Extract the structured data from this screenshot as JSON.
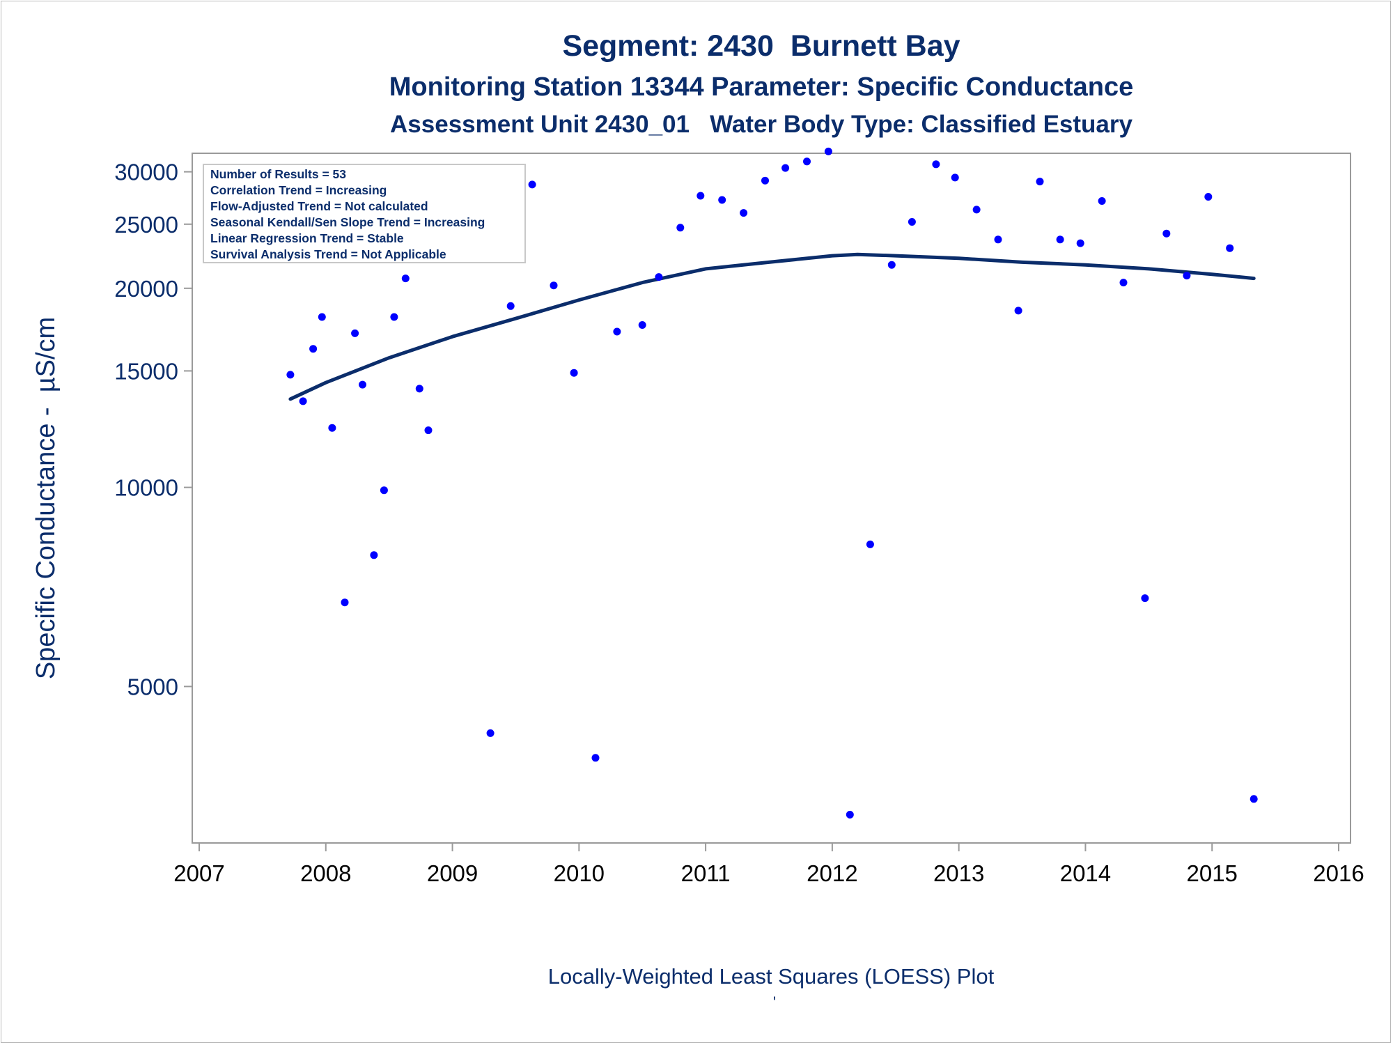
{
  "chart_data": {
    "type": "scatter",
    "title": "Segment: 2430  Burnett Bay",
    "subtitle_1": "Monitoring Station 13344 Parameter: Specific Conductance",
    "subtitle_2": "Assessment Unit 2430_01   Water Body Type: Classified Estuary",
    "ylabel": "Specific Conductance -  µS/cm",
    "footnote": "Locally-Weighted Least Squares (LOESS) Plot",
    "footnote_mark": "'",
    "y_scale": "log",
    "xlim": [
      2007,
      2016
    ],
    "ylim": [
      2900,
      32000
    ],
    "x_ticks": [
      2007,
      2008,
      2009,
      2010,
      2011,
      2012,
      2013,
      2014,
      2015,
      2016
    ],
    "y_ticks": [
      5000,
      10000,
      15000,
      20000,
      25000,
      30000
    ],
    "grid": false,
    "colors": {
      "text": "#0b2d6b",
      "points": "#0000ff",
      "loess": "#0b2d6b",
      "axis": "#9a9a9a",
      "x_tick_label": "#000000"
    },
    "stats_box": {
      "placement": "top-left",
      "lines": [
        "Number of Results = 53",
        "Correlation Trend = Increasing",
        "Flow-Adjusted Trend = Not calculated",
        "Seasonal Kendall/Sen Slope Trend = Increasing",
        "Linear Regression Trend = Stable",
        "Survival Analysis Trend = Not Applicable"
      ]
    },
    "series": [
      {
        "kind": "points",
        "points": [
          {
            "x": 2007.72,
            "y": 14800
          },
          {
            "x": 2007.82,
            "y": 13500
          },
          {
            "x": 2007.9,
            "y": 16200
          },
          {
            "x": 2007.97,
            "y": 18100
          },
          {
            "x": 2008.05,
            "y": 12300
          },
          {
            "x": 2008.15,
            "y": 6700
          },
          {
            "x": 2008.23,
            "y": 17100
          },
          {
            "x": 2008.29,
            "y": 14300
          },
          {
            "x": 2008.38,
            "y": 7900
          },
          {
            "x": 2008.46,
            "y": 9900
          },
          {
            "x": 2008.54,
            "y": 18100
          },
          {
            "x": 2008.63,
            "y": 20700
          },
          {
            "x": 2008.74,
            "y": 14100
          },
          {
            "x": 2008.81,
            "y": 12200
          },
          {
            "x": 2008.96,
            "y": 27600
          },
          {
            "x": 2009.13,
            "y": 28500
          },
          {
            "x": 2009.3,
            "y": 4250
          },
          {
            "x": 2009.46,
            "y": 18800
          },
          {
            "x": 2009.63,
            "y": 28700
          },
          {
            "x": 2009.8,
            "y": 20200
          },
          {
            "x": 2009.96,
            "y": 14900
          },
          {
            "x": 2010.13,
            "y": 3900
          },
          {
            "x": 2010.3,
            "y": 17200
          },
          {
            "x": 2010.5,
            "y": 17600
          },
          {
            "x": 2010.63,
            "y": 20800
          },
          {
            "x": 2010.8,
            "y": 24700
          },
          {
            "x": 2010.96,
            "y": 27600
          },
          {
            "x": 2011.13,
            "y": 27200
          },
          {
            "x": 2011.3,
            "y": 26000
          },
          {
            "x": 2011.47,
            "y": 29100
          },
          {
            "x": 2011.63,
            "y": 30400
          },
          {
            "x": 2011.8,
            "y": 31100
          },
          {
            "x": 2011.97,
            "y": 32200
          },
          {
            "x": 2012.14,
            "y": 3200
          },
          {
            "x": 2012.3,
            "y": 8200
          },
          {
            "x": 2012.47,
            "y": 21700
          },
          {
            "x": 2012.63,
            "y": 25200
          },
          {
            "x": 2012.82,
            "y": 30800
          },
          {
            "x": 2012.97,
            "y": 29400
          },
          {
            "x": 2013.14,
            "y": 26300
          },
          {
            "x": 2013.31,
            "y": 23700
          },
          {
            "x": 2013.47,
            "y": 18500
          },
          {
            "x": 2013.64,
            "y": 29000
          },
          {
            "x": 2013.8,
            "y": 23700
          },
          {
            "x": 2013.96,
            "y": 23400
          },
          {
            "x": 2014.13,
            "y": 27100
          },
          {
            "x": 2014.3,
            "y": 20400
          },
          {
            "x": 2014.47,
            "y": 6800
          },
          {
            "x": 2014.64,
            "y": 24200
          },
          {
            "x": 2014.8,
            "y": 20900
          },
          {
            "x": 2014.97,
            "y": 27500
          },
          {
            "x": 2015.14,
            "y": 23000
          },
          {
            "x": 2015.33,
            "y": 3380
          }
        ]
      },
      {
        "kind": "loess",
        "points": [
          {
            "x": 2007.72,
            "y": 13600
          },
          {
            "x": 2008.0,
            "y": 14400
          },
          {
            "x": 2008.5,
            "y": 15700
          },
          {
            "x": 2009.0,
            "y": 16900
          },
          {
            "x": 2009.5,
            "y": 18000
          },
          {
            "x": 2010.0,
            "y": 19200
          },
          {
            "x": 2010.5,
            "y": 20400
          },
          {
            "x": 2011.0,
            "y": 21400
          },
          {
            "x": 2011.5,
            "y": 21900
          },
          {
            "x": 2012.0,
            "y": 22400
          },
          {
            "x": 2012.2,
            "y": 22500
          },
          {
            "x": 2012.5,
            "y": 22400
          },
          {
            "x": 2013.0,
            "y": 22200
          },
          {
            "x": 2013.5,
            "y": 21900
          },
          {
            "x": 2014.0,
            "y": 21700
          },
          {
            "x": 2014.5,
            "y": 21400
          },
          {
            "x": 2015.0,
            "y": 21000
          },
          {
            "x": 2015.33,
            "y": 20700
          }
        ]
      }
    ]
  }
}
